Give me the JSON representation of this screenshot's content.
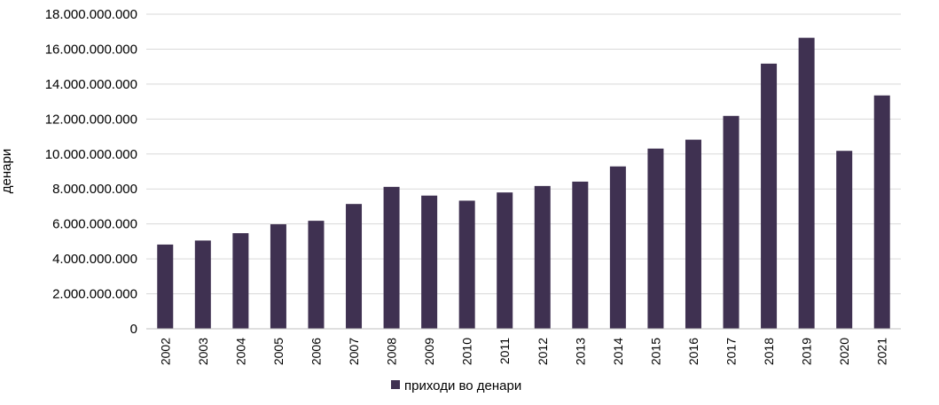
{
  "chart_data": {
    "type": "bar",
    "title": "",
    "xlabel": "",
    "ylabel": "денари",
    "categories": [
      "2002",
      "2003",
      "2004",
      "2005",
      "2006",
      "2007",
      "2008",
      "2009",
      "2010",
      "2011",
      "2012",
      "2013",
      "2014",
      "2015",
      "2016",
      "2017",
      "2018",
      "2019",
      "2020",
      "2021"
    ],
    "series": [
      {
        "name": "приходи во денари",
        "color": "#3f3151",
        "values": [
          4820000000,
          5050000000,
          5470000000,
          5980000000,
          6180000000,
          7140000000,
          8120000000,
          7620000000,
          7330000000,
          7800000000,
          8170000000,
          8420000000,
          9290000000,
          10310000000,
          10820000000,
          12180000000,
          15170000000,
          16650000000,
          10180000000,
          13350000000
        ]
      }
    ],
    "ylim": [
      0,
      18000000000
    ],
    "yticks": [
      "0",
      "2.000.000.000",
      "4.000.000.000",
      "6.000.000.000",
      "8.000.000.000",
      "10.000.000.000",
      "12.000.000.000",
      "14.000.000.000",
      "16.000.000.000",
      "18.000.000.000"
    ],
    "grid": true,
    "legend_position": "bottom"
  }
}
